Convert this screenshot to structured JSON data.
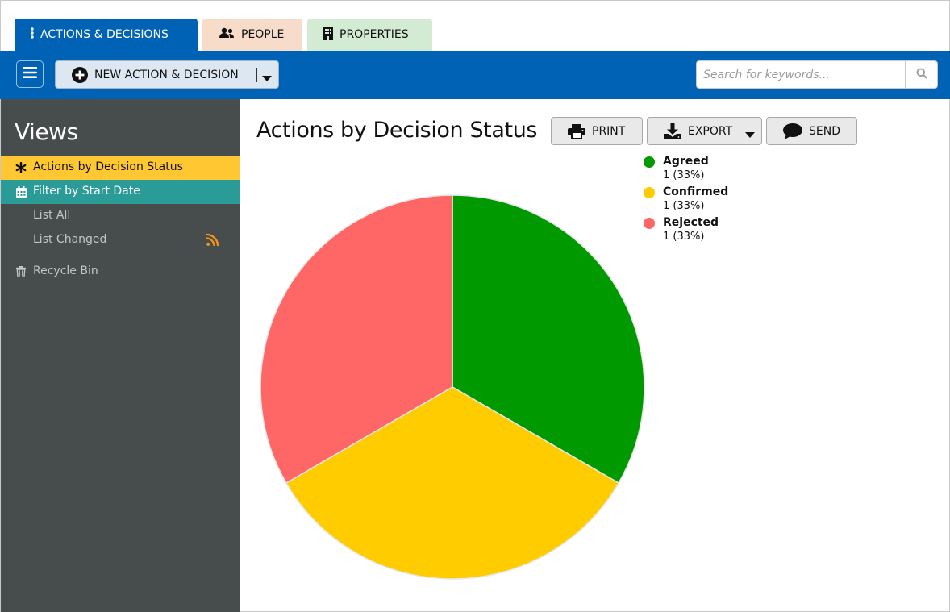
{
  "tabs": [
    {
      "label": "ACTIONS & DECISIONS",
      "icon": "vertical-ellipsis-icon"
    },
    {
      "label": "PEOPLE",
      "icon": "users-icon"
    },
    {
      "label": "PROPERTIES",
      "icon": "building-icon"
    }
  ],
  "toolbar": {
    "new_label": "NEW ACTION & DECISION",
    "search_placeholder": "Search for keywords..."
  },
  "sidebar": {
    "title": "Views",
    "items": [
      {
        "label": "Actions by Decision Status",
        "icon": "asterisk-icon",
        "state": "active"
      },
      {
        "label": "Filter by Start Date",
        "icon": "calendar-icon",
        "state": "highlighted"
      },
      {
        "label": "List All"
      },
      {
        "label": "List Changed",
        "badge_icon": "rss-icon"
      },
      {
        "label": "Recycle Bin",
        "icon": "trash-icon"
      }
    ]
  },
  "main": {
    "title": "Actions by Decision Status",
    "buttons": {
      "print": "PRINT",
      "export": "EXPORT",
      "send": "SEND"
    }
  },
  "colors": {
    "brand_blue": "#0062b4",
    "active_yellow": "#ffc833",
    "filter_teal": "#2b9b98",
    "sidebar_bg": "#474c4c"
  },
  "chart_data": {
    "type": "pie",
    "title": "",
    "legend_position": "top-right",
    "slices": [
      {
        "name": "Agreed",
        "value": 1,
        "label": "1 (33%)",
        "color": "#009a00"
      },
      {
        "name": "Confirmed",
        "value": 1,
        "label": "1 (33%)",
        "color": "#ffcc00"
      },
      {
        "name": "Rejected",
        "value": 1,
        "label": "1 (33%)",
        "color": "#ff6666"
      }
    ]
  }
}
